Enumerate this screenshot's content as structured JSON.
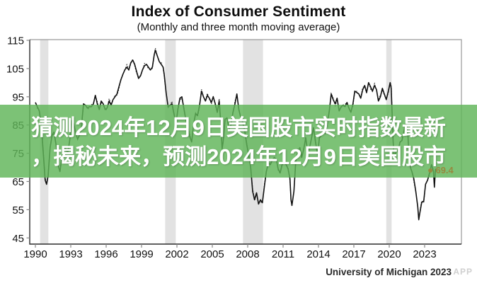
{
  "header": {
    "title": "Index of Consumer Sentiment",
    "subtitle": "(Monthly and three month moving average)"
  },
  "overlay_banner": {
    "line1": "猜测2024年12月9日美国股市实时指数最新",
    "line2": "，揭秘未来，预测2024年12月9日美国股市",
    "background_color": "#5fb458",
    "text_color": "#ffffff"
  },
  "chart_data": {
    "type": "line",
    "title": "Index of Consumer Sentiment",
    "subtitle": "(Monthly and three month moving average)",
    "xlabel": "",
    "ylabel": "",
    "xlim": [
      1989.5,
      2026.1
    ],
    "ylim": [
      42.5,
      115.3
    ],
    "grid": false,
    "x_ticks": [
      1990,
      1993,
      1996,
      1999,
      2002,
      2005,
      2008,
      2011,
      2014,
      2017,
      2020,
      2023
    ],
    "y_ticks": [
      115,
      105,
      95,
      85,
      75,
      65,
      55,
      45
    ],
    "series": [
      {
        "name": "Monthly",
        "style": "dotted",
        "color": "#1a1a1a"
      },
      {
        "name": "Three month moving average",
        "style": "solid",
        "color": "#111111"
      }
    ],
    "recession_bands": [
      [
        1990.4,
        1991.1
      ],
      [
        2001.0,
        2001.9
      ],
      [
        2007.6,
        2009.3
      ],
      [
        2019.75,
        2020.2
      ]
    ],
    "recession_color": "#e2e2e2",
    "end_point": {
      "x": 2023.92,
      "value": 69.4,
      "label": "69.4",
      "label_color": "#97893f"
    },
    "points": [
      [
        1990.0,
        93
      ],
      [
        1990.17,
        91.5
      ],
      [
        1990.33,
        90
      ],
      [
        1990.5,
        85
      ],
      [
        1990.67,
        75
      ],
      [
        1990.83,
        65.5
      ],
      [
        1990.95,
        64
      ],
      [
        1991.08,
        67
      ],
      [
        1991.25,
        77
      ],
      [
        1991.42,
        81.5
      ],
      [
        1991.58,
        82.5
      ],
      [
        1991.75,
        78
      ],
      [
        1991.92,
        71
      ],
      [
        1992.08,
        68.5
      ],
      [
        1992.25,
        73.5
      ],
      [
        1992.42,
        77
      ],
      [
        1992.58,
        76.5
      ],
      [
        1992.75,
        75
      ],
      [
        1992.92,
        80
      ],
      [
        1993.08,
        86.5
      ],
      [
        1993.25,
        85.5
      ],
      [
        1993.42,
        82
      ],
      [
        1993.58,
        80
      ],
      [
        1993.75,
        81.5
      ],
      [
        1993.92,
        85
      ],
      [
        1994.08,
        92.5
      ],
      [
        1994.25,
        92
      ],
      [
        1994.42,
        91
      ],
      [
        1994.58,
        91.5
      ],
      [
        1994.75,
        91.5
      ],
      [
        1994.92,
        92.5
      ],
      [
        1995.08,
        95.5
      ],
      [
        1995.25,
        92.5
      ],
      [
        1995.42,
        90.5
      ],
      [
        1995.58,
        93.5
      ],
      [
        1995.75,
        92.5
      ],
      [
        1995.92,
        90.5
      ],
      [
        1996.08,
        91
      ],
      [
        1996.25,
        93.5
      ],
      [
        1996.42,
        92
      ],
      [
        1996.58,
        94
      ],
      [
        1996.75,
        95
      ],
      [
        1996.92,
        96
      ],
      [
        1997.08,
        98.5
      ],
      [
        1997.25,
        101
      ],
      [
        1997.42,
        103
      ],
      [
        1997.58,
        104.5
      ],
      [
        1997.75,
        105.5
      ],
      [
        1997.92,
        104.5
      ],
      [
        1998.08,
        107
      ],
      [
        1998.25,
        108
      ],
      [
        1998.42,
        106.5
      ],
      [
        1998.58,
        104
      ],
      [
        1998.75,
        101.5
      ],
      [
        1998.92,
        102.5
      ],
      [
        1999.08,
        104.5
      ],
      [
        1999.25,
        106
      ],
      [
        1999.42,
        106.5
      ],
      [
        1999.58,
        105.5
      ],
      [
        1999.75,
        104.5
      ],
      [
        1999.92,
        105.5
      ],
      [
        2000.08,
        110
      ],
      [
        2000.17,
        111.5
      ],
      [
        2000.33,
        109.5
      ],
      [
        2000.5,
        107.5
      ],
      [
        2000.67,
        106.5
      ],
      [
        2000.83,
        105.5
      ],
      [
        2000.92,
        103
      ],
      [
        2001.08,
        96.5
      ],
      [
        2001.25,
        91.5
      ],
      [
        2001.42,
        92
      ],
      [
        2001.58,
        92.5
      ],
      [
        2001.75,
        89
      ],
      [
        2001.92,
        85.5
      ],
      [
        2002.08,
        90.5
      ],
      [
        2002.25,
        94.5
      ],
      [
        2002.42,
        95
      ],
      [
        2002.58,
        91
      ],
      [
        2002.75,
        87
      ],
      [
        2002.92,
        84.5
      ],
      [
        2003.08,
        81
      ],
      [
        2003.25,
        79
      ],
      [
        2003.42,
        85.5
      ],
      [
        2003.58,
        89
      ],
      [
        2003.75,
        88.5
      ],
      [
        2003.92,
        92
      ],
      [
        2004.08,
        97
      ],
      [
        2004.25,
        95
      ],
      [
        2004.42,
        93.5
      ],
      [
        2004.58,
        95.5
      ],
      [
        2004.75,
        94.5
      ],
      [
        2004.92,
        93
      ],
      [
        2005.08,
        95
      ],
      [
        2005.25,
        92.5
      ],
      [
        2005.42,
        89.5
      ],
      [
        2005.58,
        93.5
      ],
      [
        2005.75,
        84
      ],
      [
        2005.83,
        76.5
      ],
      [
        2005.92,
        79
      ],
      [
        2006.08,
        87
      ],
      [
        2006.25,
        87.5
      ],
      [
        2006.42,
        83.5
      ],
      [
        2006.58,
        85
      ],
      [
        2006.75,
        89.5
      ],
      [
        2006.92,
        92.5
      ],
      [
        2007.08,
        96
      ],
      [
        2007.25,
        90.5
      ],
      [
        2007.42,
        87.5
      ],
      [
        2007.58,
        86
      ],
      [
        2007.75,
        83
      ],
      [
        2007.92,
        78
      ],
      [
        2008.08,
        74.5
      ],
      [
        2008.25,
        70
      ],
      [
        2008.42,
        61.5
      ],
      [
        2008.58,
        58.5
      ],
      [
        2008.75,
        61
      ],
      [
        2008.92,
        57
      ],
      [
        2009.08,
        58.5
      ],
      [
        2009.25,
        57.5
      ],
      [
        2009.42,
        63.5
      ],
      [
        2009.58,
        68.5
      ],
      [
        2009.75,
        71.5
      ],
      [
        2009.92,
        71
      ],
      [
        2010.08,
        72.5
      ],
      [
        2010.25,
        73.5
      ],
      [
        2010.42,
        73
      ],
      [
        2010.58,
        69.5
      ],
      [
        2010.75,
        68
      ],
      [
        2010.92,
        71
      ],
      [
        2011.08,
        72.5
      ],
      [
        2011.25,
        71
      ],
      [
        2011.42,
        69.5
      ],
      [
        2011.58,
        66
      ],
      [
        2011.67,
        58.5
      ],
      [
        2011.75,
        56.5
      ],
      [
        2011.92,
        61.5
      ],
      [
        2012.08,
        72.5
      ],
      [
        2012.25,
        75.5
      ],
      [
        2012.42,
        77
      ],
      [
        2012.58,
        73.5
      ],
      [
        2012.75,
        76.5
      ],
      [
        2012.92,
        80.5
      ],
      [
        2013.08,
        75.5
      ],
      [
        2013.25,
        77
      ],
      [
        2013.42,
        80.5
      ],
      [
        2013.58,
        84
      ],
      [
        2013.75,
        79
      ],
      [
        2013.92,
        74.5
      ],
      [
        2014.08,
        80.5
      ],
      [
        2014.25,
        81.5
      ],
      [
        2014.42,
        83
      ],
      [
        2014.58,
        82
      ],
      [
        2014.75,
        85.5
      ],
      [
        2014.92,
        90
      ],
      [
        2015.08,
        96
      ],
      [
        2015.25,
        94
      ],
      [
        2015.42,
        92.5
      ],
      [
        2015.58,
        94.5
      ],
      [
        2015.75,
        90
      ],
      [
        2015.92,
        91.5
      ],
      [
        2016.08,
        92
      ],
      [
        2016.25,
        91.5
      ],
      [
        2016.42,
        93
      ],
      [
        2016.58,
        91
      ],
      [
        2016.75,
        89.5
      ],
      [
        2016.92,
        92.5
      ],
      [
        2017.08,
        97
      ],
      [
        2017.25,
        96.5
      ],
      [
        2017.42,
        96
      ],
      [
        2017.58,
        94.5
      ],
      [
        2017.75,
        97.5
      ],
      [
        2017.92,
        99
      ],
      [
        2018.08,
        96.5
      ],
      [
        2018.25,
        100
      ],
      [
        2018.42,
        98.5
      ],
      [
        2018.58,
        97
      ],
      [
        2018.75,
        99
      ],
      [
        2018.92,
        97.5
      ],
      [
        2019.08,
        93.5
      ],
      [
        2019.25,
        95
      ],
      [
        2019.42,
        98
      ],
      [
        2019.58,
        96
      ],
      [
        2019.75,
        94
      ],
      [
        2019.92,
        97
      ],
      [
        2020.08,
        100
      ],
      [
        2020.17,
        98
      ],
      [
        2020.33,
        79
      ],
      [
        2020.42,
        73.5
      ],
      [
        2020.58,
        75.5
      ],
      [
        2020.75,
        76
      ],
      [
        2020.92,
        79
      ],
      [
        2021.08,
        79.5
      ],
      [
        2021.25,
        83
      ],
      [
        2021.42,
        86
      ],
      [
        2021.58,
        82
      ],
      [
        2021.67,
        74
      ],
      [
        2021.83,
        69.5
      ],
      [
        2021.92,
        68.5
      ],
      [
        2022.08,
        66
      ],
      [
        2022.25,
        61.5
      ],
      [
        2022.42,
        56
      ],
      [
        2022.5,
        51.5
      ],
      [
        2022.58,
        53.5
      ],
      [
        2022.75,
        57.5
      ],
      [
        2022.92,
        58
      ],
      [
        2023.08,
        64
      ],
      [
        2023.25,
        65.5
      ],
      [
        2023.42,
        68
      ],
      [
        2023.58,
        71
      ],
      [
        2023.75,
        68.5
      ],
      [
        2023.83,
        63
      ],
      [
        2023.92,
        69.4
      ]
    ],
    "attribution": "University of Michigan 2023"
  },
  "footer": {
    "attribution": "University of Michigan 2023",
    "watermark": "APP"
  },
  "end_label": {
    "dot": "●",
    "value": "69.4"
  }
}
